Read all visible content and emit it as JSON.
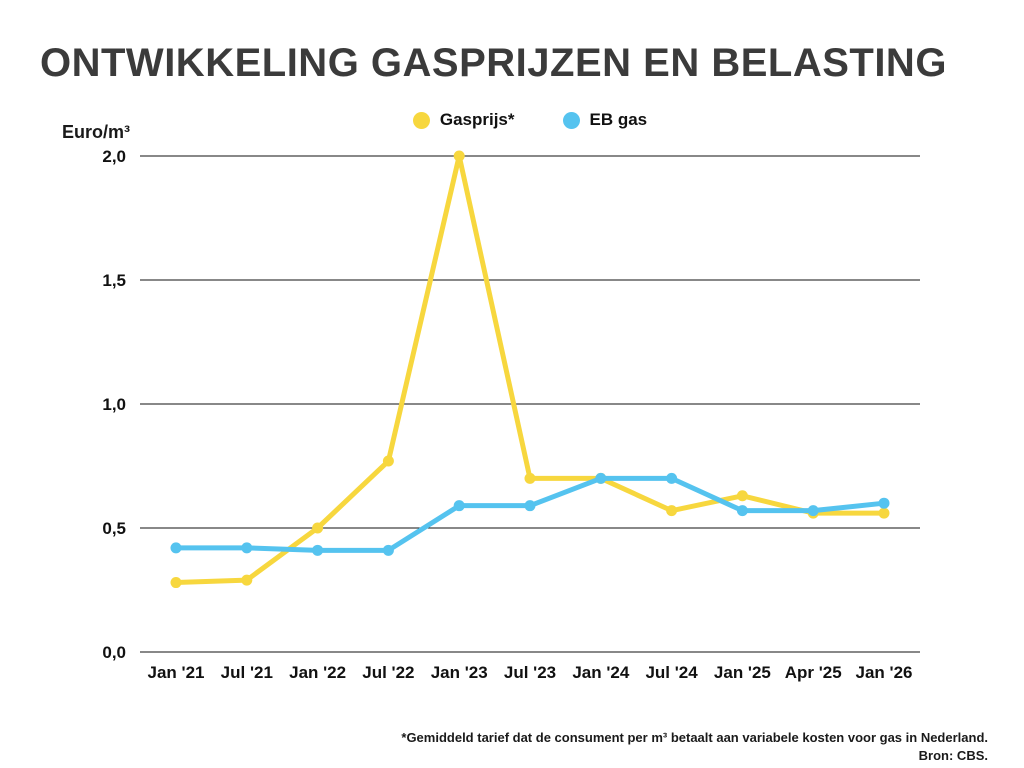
{
  "title": "ONTWIKKELING GASPRIJZEN EN BELASTING",
  "y_axis_unit": "Euro/m³",
  "legend": [
    {
      "label": "Gasprijs*",
      "color": "#F7D73E"
    },
    {
      "label": "EB gas",
      "color": "#55C3EF"
    }
  ],
  "footnote": "*Gemiddeld tarief dat de consument per m³ betaalt aan variabele kosten voor gas in Nederland.",
  "source": "Bron: CBS.",
  "chart_data": {
    "type": "line",
    "categories": [
      "Jan '21",
      "Jul '21",
      "Jan '22",
      "Jul '22",
      "Jan '23",
      "Jul '23",
      "Jan '24",
      "Jul '24",
      "Jan '25",
      "Apr '25",
      "Jan '26"
    ],
    "series": [
      {
        "name": "Gasprijs*",
        "color": "#F7D73E",
        "values": [
          0.28,
          0.29,
          0.5,
          0.77,
          2.0,
          0.7,
          0.7,
          0.57,
          0.63,
          0.56,
          0.56
        ]
      },
      {
        "name": "EB gas",
        "color": "#55C3EF",
        "values": [
          0.42,
          0.42,
          0.41,
          0.41,
          0.59,
          0.59,
          0.7,
          0.7,
          0.57,
          0.57,
          0.6
        ]
      }
    ],
    "title": "ONTWIKKELING GASPRIJZEN EN BELASTING",
    "xlabel": "",
    "ylabel": "Euro/m³",
    "ylim": [
      0,
      2.0
    ],
    "yticks": [
      0.0,
      0.5,
      1.0,
      1.5,
      2.0
    ],
    "ytick_labels": [
      "0,0",
      "0,5",
      "1,0",
      "1,5",
      "2,0"
    ],
    "grid": "horizontal",
    "legend_position": "top-center"
  }
}
